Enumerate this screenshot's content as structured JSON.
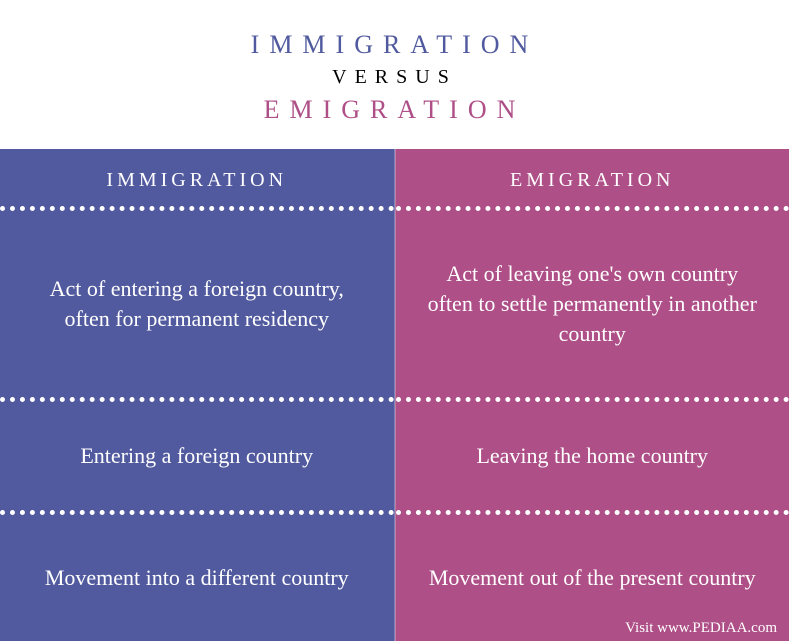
{
  "colors": {
    "left": "#515a9e",
    "right": "#ae4f87"
  },
  "header": {
    "title_top": "IMMIGRATION",
    "versus": "VERSUS",
    "title_bottom": "EMIGRATION"
  },
  "left": {
    "heading": "IMMIGRATION",
    "rows": [
      "Act of entering a foreign country, often for permanent residency",
      "Entering a foreign country",
      "Movement into a different country"
    ]
  },
  "right": {
    "heading": "EMIGRATION",
    "rows": [
      "Act of leaving one's own country often to settle permanently in another country",
      "Leaving the home country",
      "Movement out of the present country"
    ]
  },
  "footer": "Visit www.PEDIAA.com"
}
